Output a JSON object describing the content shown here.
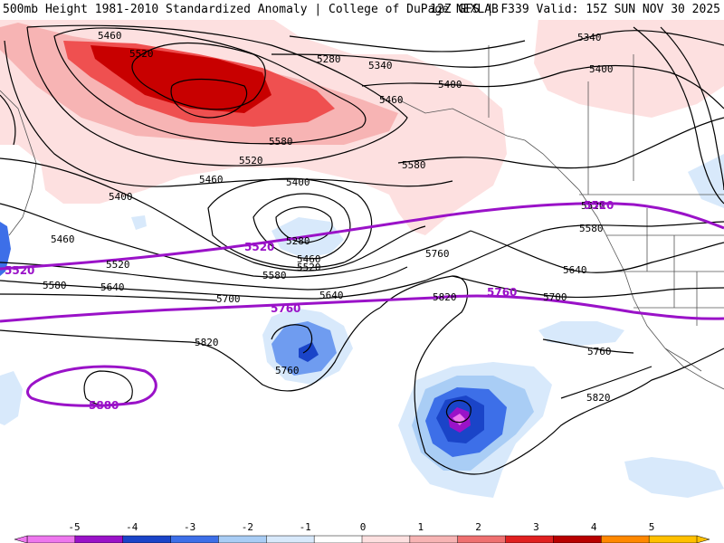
{
  "header": {
    "left_title": "500mb Height 1981-2010 Standardized Anomaly | College of DuPage NEXLAB",
    "right_title": "12Z GFS | F339 Valid: 15Z SUN NOV 30 2025"
  },
  "contours": {
    "black_labels": [
      {
        "id": "c5460-top",
        "text": "5460"
      },
      {
        "id": "c5520-top",
        "text": "5520"
      },
      {
        "id": "c5280-top",
        "text": "5280"
      },
      {
        "id": "c5340-mid",
        "text": "5340"
      },
      {
        "id": "c5400-mid",
        "text": "5400"
      },
      {
        "id": "c5460-mid",
        "text": "5460"
      },
      {
        "id": "c5580-top",
        "text": "5580"
      },
      {
        "id": "c5520-mid",
        "text": "5520"
      },
      {
        "id": "c5460-low",
        "text": "5460"
      },
      {
        "id": "c5580-mid",
        "text": "5580"
      },
      {
        "id": "c5400-left",
        "text": "5400"
      },
      {
        "id": "c5400-center",
        "text": "5400"
      },
      {
        "id": "c5280-center",
        "text": "5280"
      },
      {
        "id": "c5460-center",
        "text": "5460"
      },
      {
        "id": "c5520-center",
        "text": "5520"
      },
      {
        "id": "c5580-center",
        "text": "5580"
      },
      {
        "id": "c5460-west",
        "text": "5460"
      },
      {
        "id": "c5520-west",
        "text": "5520"
      },
      {
        "id": "c5580-west",
        "text": "5580"
      },
      {
        "id": "c5640-west",
        "text": "5640"
      },
      {
        "id": "c5640-center",
        "text": "5640"
      },
      {
        "id": "c5700-west",
        "text": "5700"
      },
      {
        "id": "c5760-center",
        "text": "5760"
      },
      {
        "id": "c5820-center",
        "text": "5820"
      },
      {
        "id": "c5820-west",
        "text": "5820"
      },
      {
        "id": "c5760-low",
        "text": "5760"
      },
      {
        "id": "c5340-ne",
        "text": "5340"
      },
      {
        "id": "c5400-ne",
        "text": "5400"
      },
      {
        "id": "c5520-east",
        "text": "5520"
      },
      {
        "id": "c5580-east",
        "text": "5580"
      },
      {
        "id": "c5640-east",
        "text": "5640"
      },
      {
        "id": "c5700-east",
        "text": "5700"
      },
      {
        "id": "c5760-east",
        "text": "5760"
      },
      {
        "id": "c5820-east",
        "text": "5820"
      }
    ],
    "purple_labels": [
      {
        "id": "p5520-west",
        "text": "5520"
      },
      {
        "id": "p5520-center",
        "text": "5520"
      },
      {
        "id": "p5520-east",
        "text": "5520"
      },
      {
        "id": "p5760-center",
        "text": "5760"
      },
      {
        "id": "p5760-east",
        "text": "5760"
      },
      {
        "id": "p5880",
        "text": "5880"
      }
    ]
  },
  "colorbar": {
    "ticks": [
      "-5",
      "-4",
      "-3",
      "-2",
      "-1",
      "0",
      "1",
      "2",
      "3",
      "4",
      "5"
    ],
    "colors": [
      "#ee77ee",
      "#9a12c8",
      "#1a44c8",
      "#3d6fe8",
      "#a9cdf5",
      "#d8e9fb",
      "#ffffff",
      "#fde0e0",
      "#f7b4b4",
      "#ef7070",
      "#e02020",
      "#b80000",
      "#ff8800",
      "#ffc000"
    ]
  }
}
